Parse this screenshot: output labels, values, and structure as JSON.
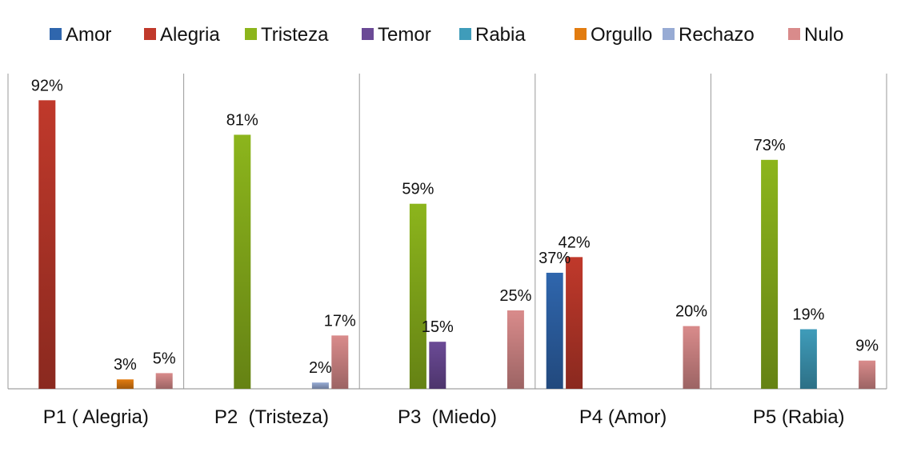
{
  "chart_data": {
    "type": "bar",
    "title": "",
    "xlabel": "",
    "ylabel": "",
    "ylim": [
      0,
      100
    ],
    "grid": false,
    "legend_position": "top",
    "categories": [
      "P1 ( Alegria)",
      "P2  (Tristeza)",
      "P3  (Miedo)",
      "P4 (Amor)",
      "P5 (Rabia)"
    ],
    "series": [
      {
        "name": "Amor",
        "color": "#2f66ad",
        "values": [
          null,
          null,
          null,
          37,
          null
        ]
      },
      {
        "name": "Alegria",
        "color": "#c0392b",
        "values": [
          92,
          null,
          null,
          42,
          null
        ]
      },
      {
        "name": "Tristeza",
        "color": "#8cb51c",
        "values": [
          null,
          81,
          59,
          null,
          73
        ]
      },
      {
        "name": "Temor",
        "color": "#6b4a96",
        "values": [
          null,
          null,
          15,
          null,
          null
        ]
      },
      {
        "name": "Rabia",
        "color": "#3f9cba",
        "values": [
          null,
          null,
          null,
          null,
          19
        ]
      },
      {
        "name": "Orgullo",
        "color": "#e27c10",
        "values": [
          3,
          null,
          null,
          null,
          null
        ]
      },
      {
        "name": "Rechazo",
        "color": "#97abd4",
        "values": [
          null,
          2,
          null,
          null,
          null
        ]
      },
      {
        "name": "Nulo",
        "color": "#d98b8b",
        "values": [
          5,
          17,
          25,
          20,
          9
        ]
      }
    ],
    "value_suffix": "%"
  }
}
